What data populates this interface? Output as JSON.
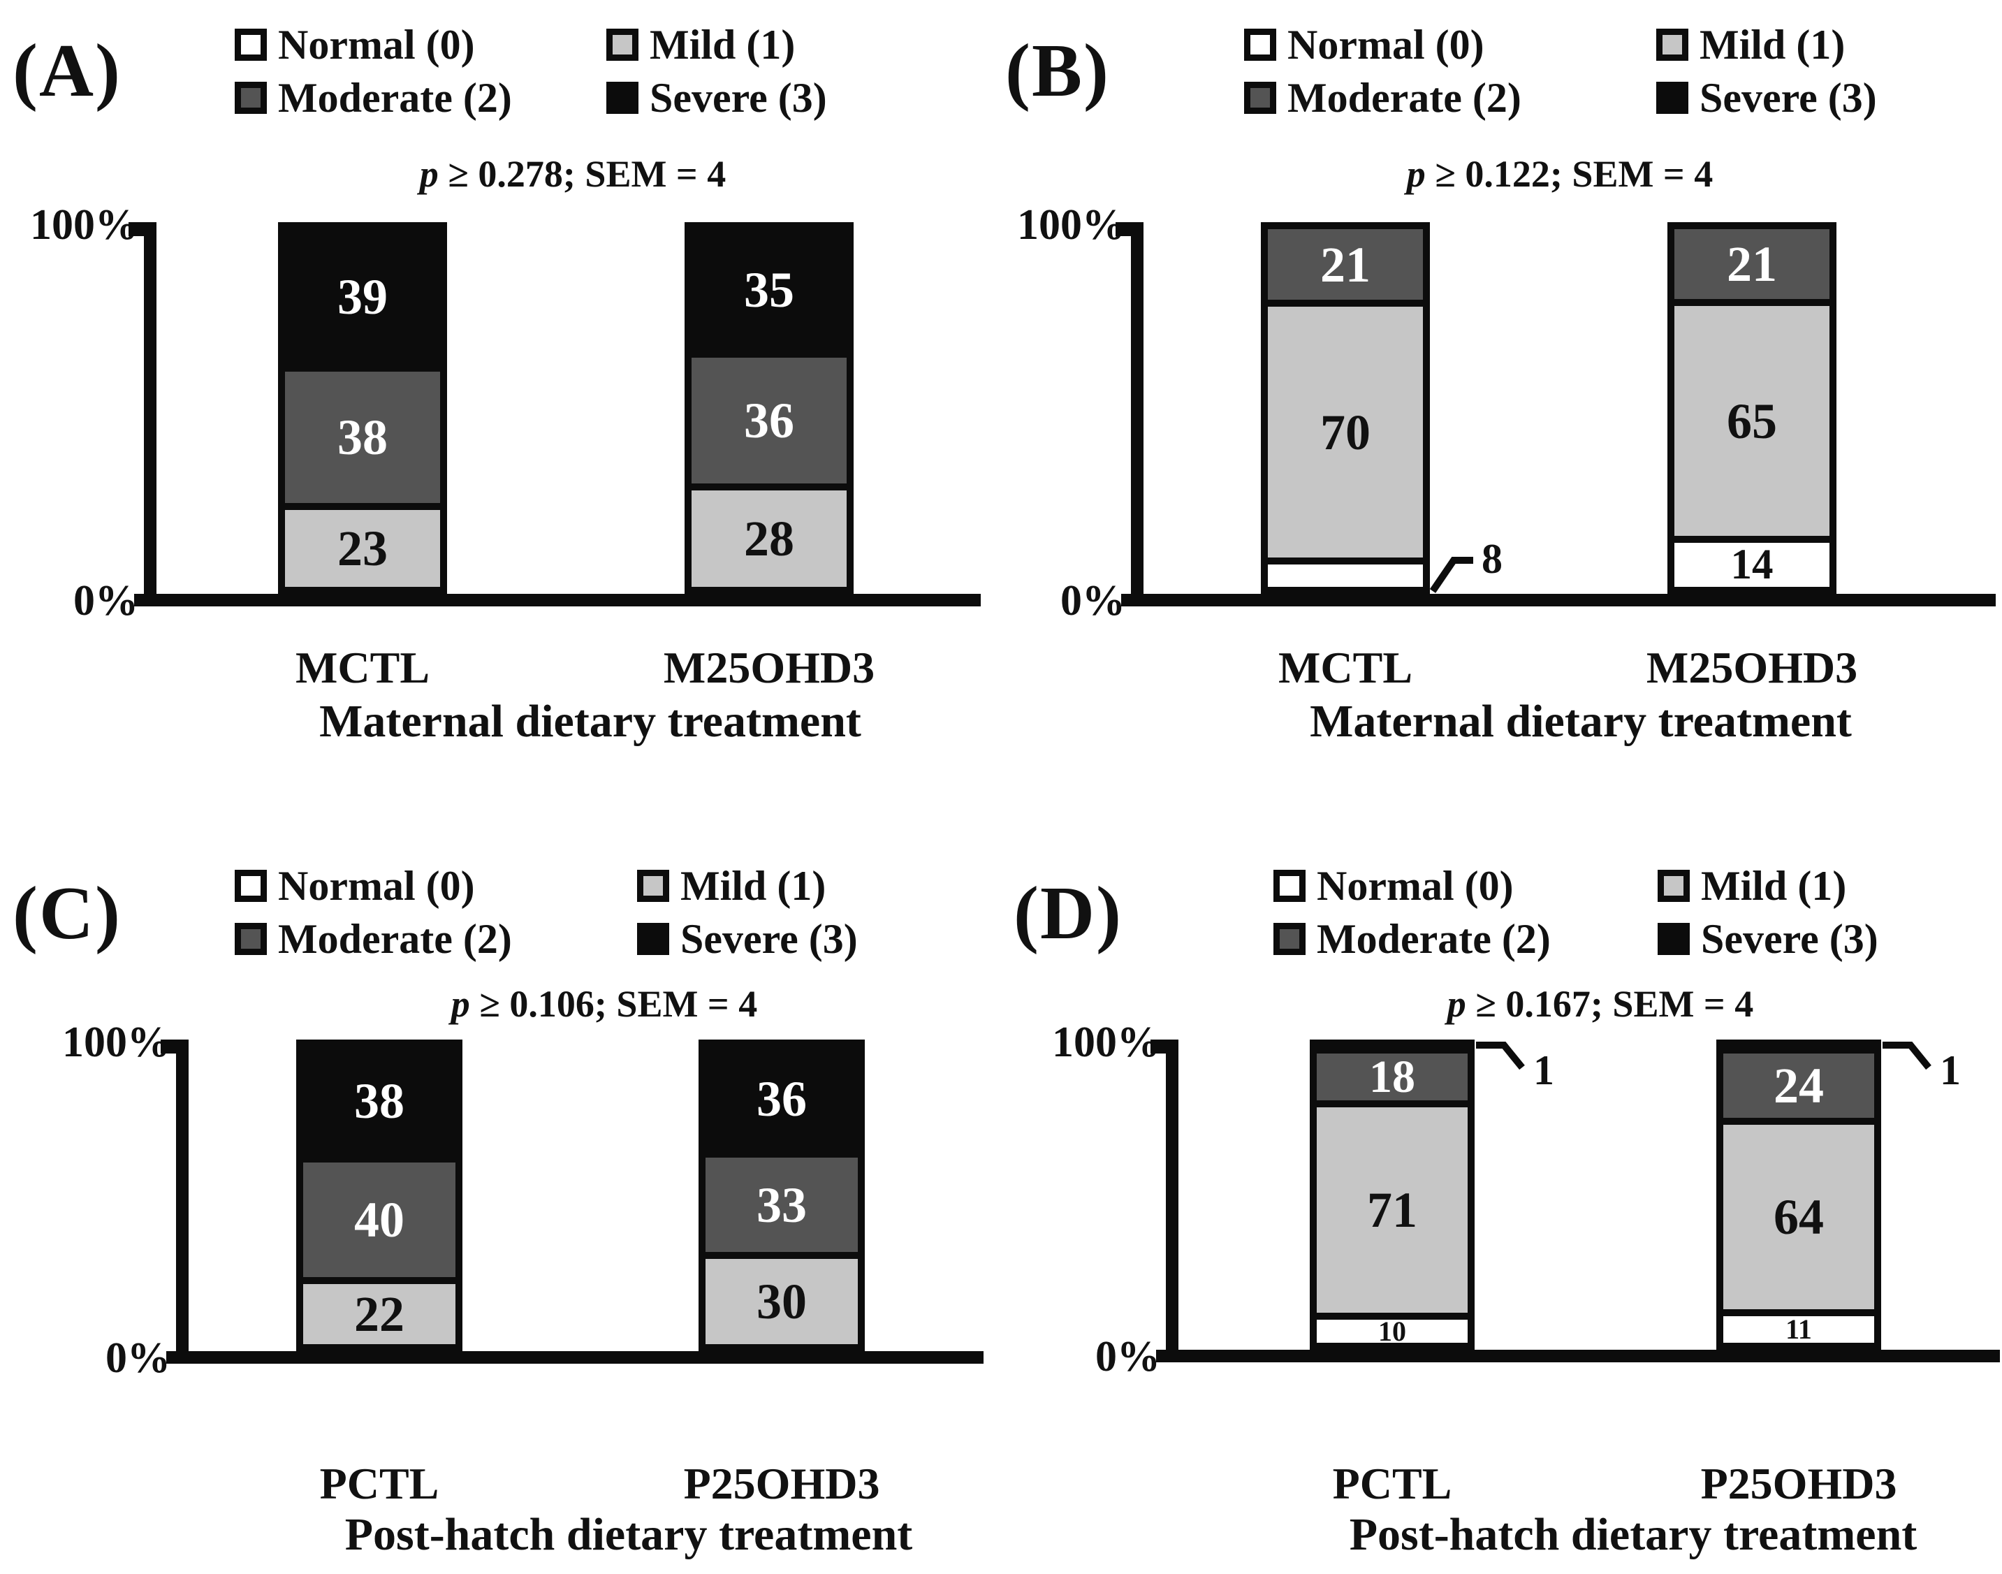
{
  "figure_type": "four-panel stacked percentage bar figure",
  "background": "#ffffff",
  "legend": {
    "items": [
      {
        "label": "Normal (0)",
        "level": "normal",
        "fill": "#ffffff"
      },
      {
        "label": "Mild (1)",
        "level": "mild",
        "fill": "#c6c6c6"
      },
      {
        "label": "Moderate (2)",
        "level": "moderate",
        "fill": "#545454"
      },
      {
        "label": "Severe (3)",
        "level": "severe",
        "fill": "#0c0c0c"
      }
    ]
  },
  "levels": {
    "normal": {
      "fill": "#ffffff",
      "text_color": "#111111"
    },
    "mild": {
      "fill": "#c6c6c6",
      "text_color": "#111111"
    },
    "moderate": {
      "fill": "#545454",
      "text_color": "#ffffff"
    },
    "severe": {
      "fill": "#0c0c0c",
      "text_color": "#ffffff"
    }
  },
  "chart_data": [
    {
      "panel": "(A)",
      "type": "bar",
      "stacked": true,
      "percent": true,
      "p_annotation": {
        "italic": "p",
        "rest": " ≥ 0.278; SEM = 4"
      },
      "categories": [
        "MCTL",
        "M25OHD3"
      ],
      "xlabel": "Maternal dietary treatment",
      "yticks": [
        "100%",
        "0%"
      ],
      "ylim": [
        0,
        100
      ],
      "series": [
        {
          "name": "Normal (0)",
          "level": "normal",
          "values": [
            0,
            0
          ]
        },
        {
          "name": "Mild (1)",
          "level": "mild",
          "values": [
            23,
            28
          ]
        },
        {
          "name": "Moderate (2)",
          "level": "moderate",
          "values": [
            38,
            36
          ]
        },
        {
          "name": "Severe (3)",
          "level": "severe",
          "values": [
            39,
            35
          ]
        }
      ],
      "callouts": []
    },
    {
      "panel": "(B)",
      "type": "bar",
      "stacked": true,
      "percent": true,
      "p_annotation": {
        "italic": "p",
        "rest": " ≥ 0.122; SEM = 4"
      },
      "categories": [
        "MCTL",
        "M25OHD3"
      ],
      "xlabel": "Maternal dietary treatment",
      "yticks": [
        "100%",
        "0%"
      ],
      "ylim": [
        0,
        100
      ],
      "series": [
        {
          "name": "Normal (0)",
          "level": "normal",
          "values": [
            8,
            14
          ]
        },
        {
          "name": "Mild (1)",
          "level": "mild",
          "values": [
            70,
            65
          ]
        },
        {
          "name": "Moderate (2)",
          "level": "moderate",
          "values": [
            21,
            21
          ]
        },
        {
          "name": "Severe (3)",
          "level": "severe",
          "values": [
            0,
            0
          ]
        }
      ],
      "callouts": [
        {
          "bar": 0,
          "level": "normal",
          "text": "8"
        }
      ]
    },
    {
      "panel": "(C)",
      "type": "bar",
      "stacked": true,
      "percent": true,
      "p_annotation": {
        "italic": "p",
        "rest": " ≥ 0.106; SEM = 4"
      },
      "categories": [
        "PCTL",
        "P25OHD3"
      ],
      "xlabel": "Post-hatch dietary treatment",
      "yticks": [
        "100%",
        "0%"
      ],
      "ylim": [
        0,
        100
      ],
      "series": [
        {
          "name": "Normal (0)",
          "level": "normal",
          "values": [
            0,
            0
          ]
        },
        {
          "name": "Mild (1)",
          "level": "mild",
          "values": [
            22,
            30
          ]
        },
        {
          "name": "Moderate (2)",
          "level": "moderate",
          "values": [
            40,
            33
          ]
        },
        {
          "name": "Severe (3)",
          "level": "severe",
          "values": [
            38,
            36
          ]
        }
      ],
      "callouts": []
    },
    {
      "panel": "(D)",
      "type": "bar",
      "stacked": true,
      "percent": true,
      "p_annotation": {
        "italic": "p",
        "rest": " ≥ 0.167; SEM = 4"
      },
      "categories": [
        "PCTL",
        "P25OHD3"
      ],
      "xlabel": "Post-hatch dietary treatment",
      "yticks": [
        "100%",
        "0%"
      ],
      "ylim": [
        0,
        100
      ],
      "series": [
        {
          "name": "Normal (0)",
          "level": "normal",
          "values": [
            10,
            11
          ]
        },
        {
          "name": "Mild (1)",
          "level": "mild",
          "values": [
            71,
            64
          ]
        },
        {
          "name": "Moderate (2)",
          "level": "moderate",
          "values": [
            18,
            24
          ]
        },
        {
          "name": "Severe (3)",
          "level": "severe",
          "values": [
            1,
            1
          ]
        }
      ],
      "callouts": [
        {
          "bar": 0,
          "level": "severe",
          "text": "1"
        },
        {
          "bar": 1,
          "level": "severe",
          "text": "1"
        }
      ]
    }
  ]
}
